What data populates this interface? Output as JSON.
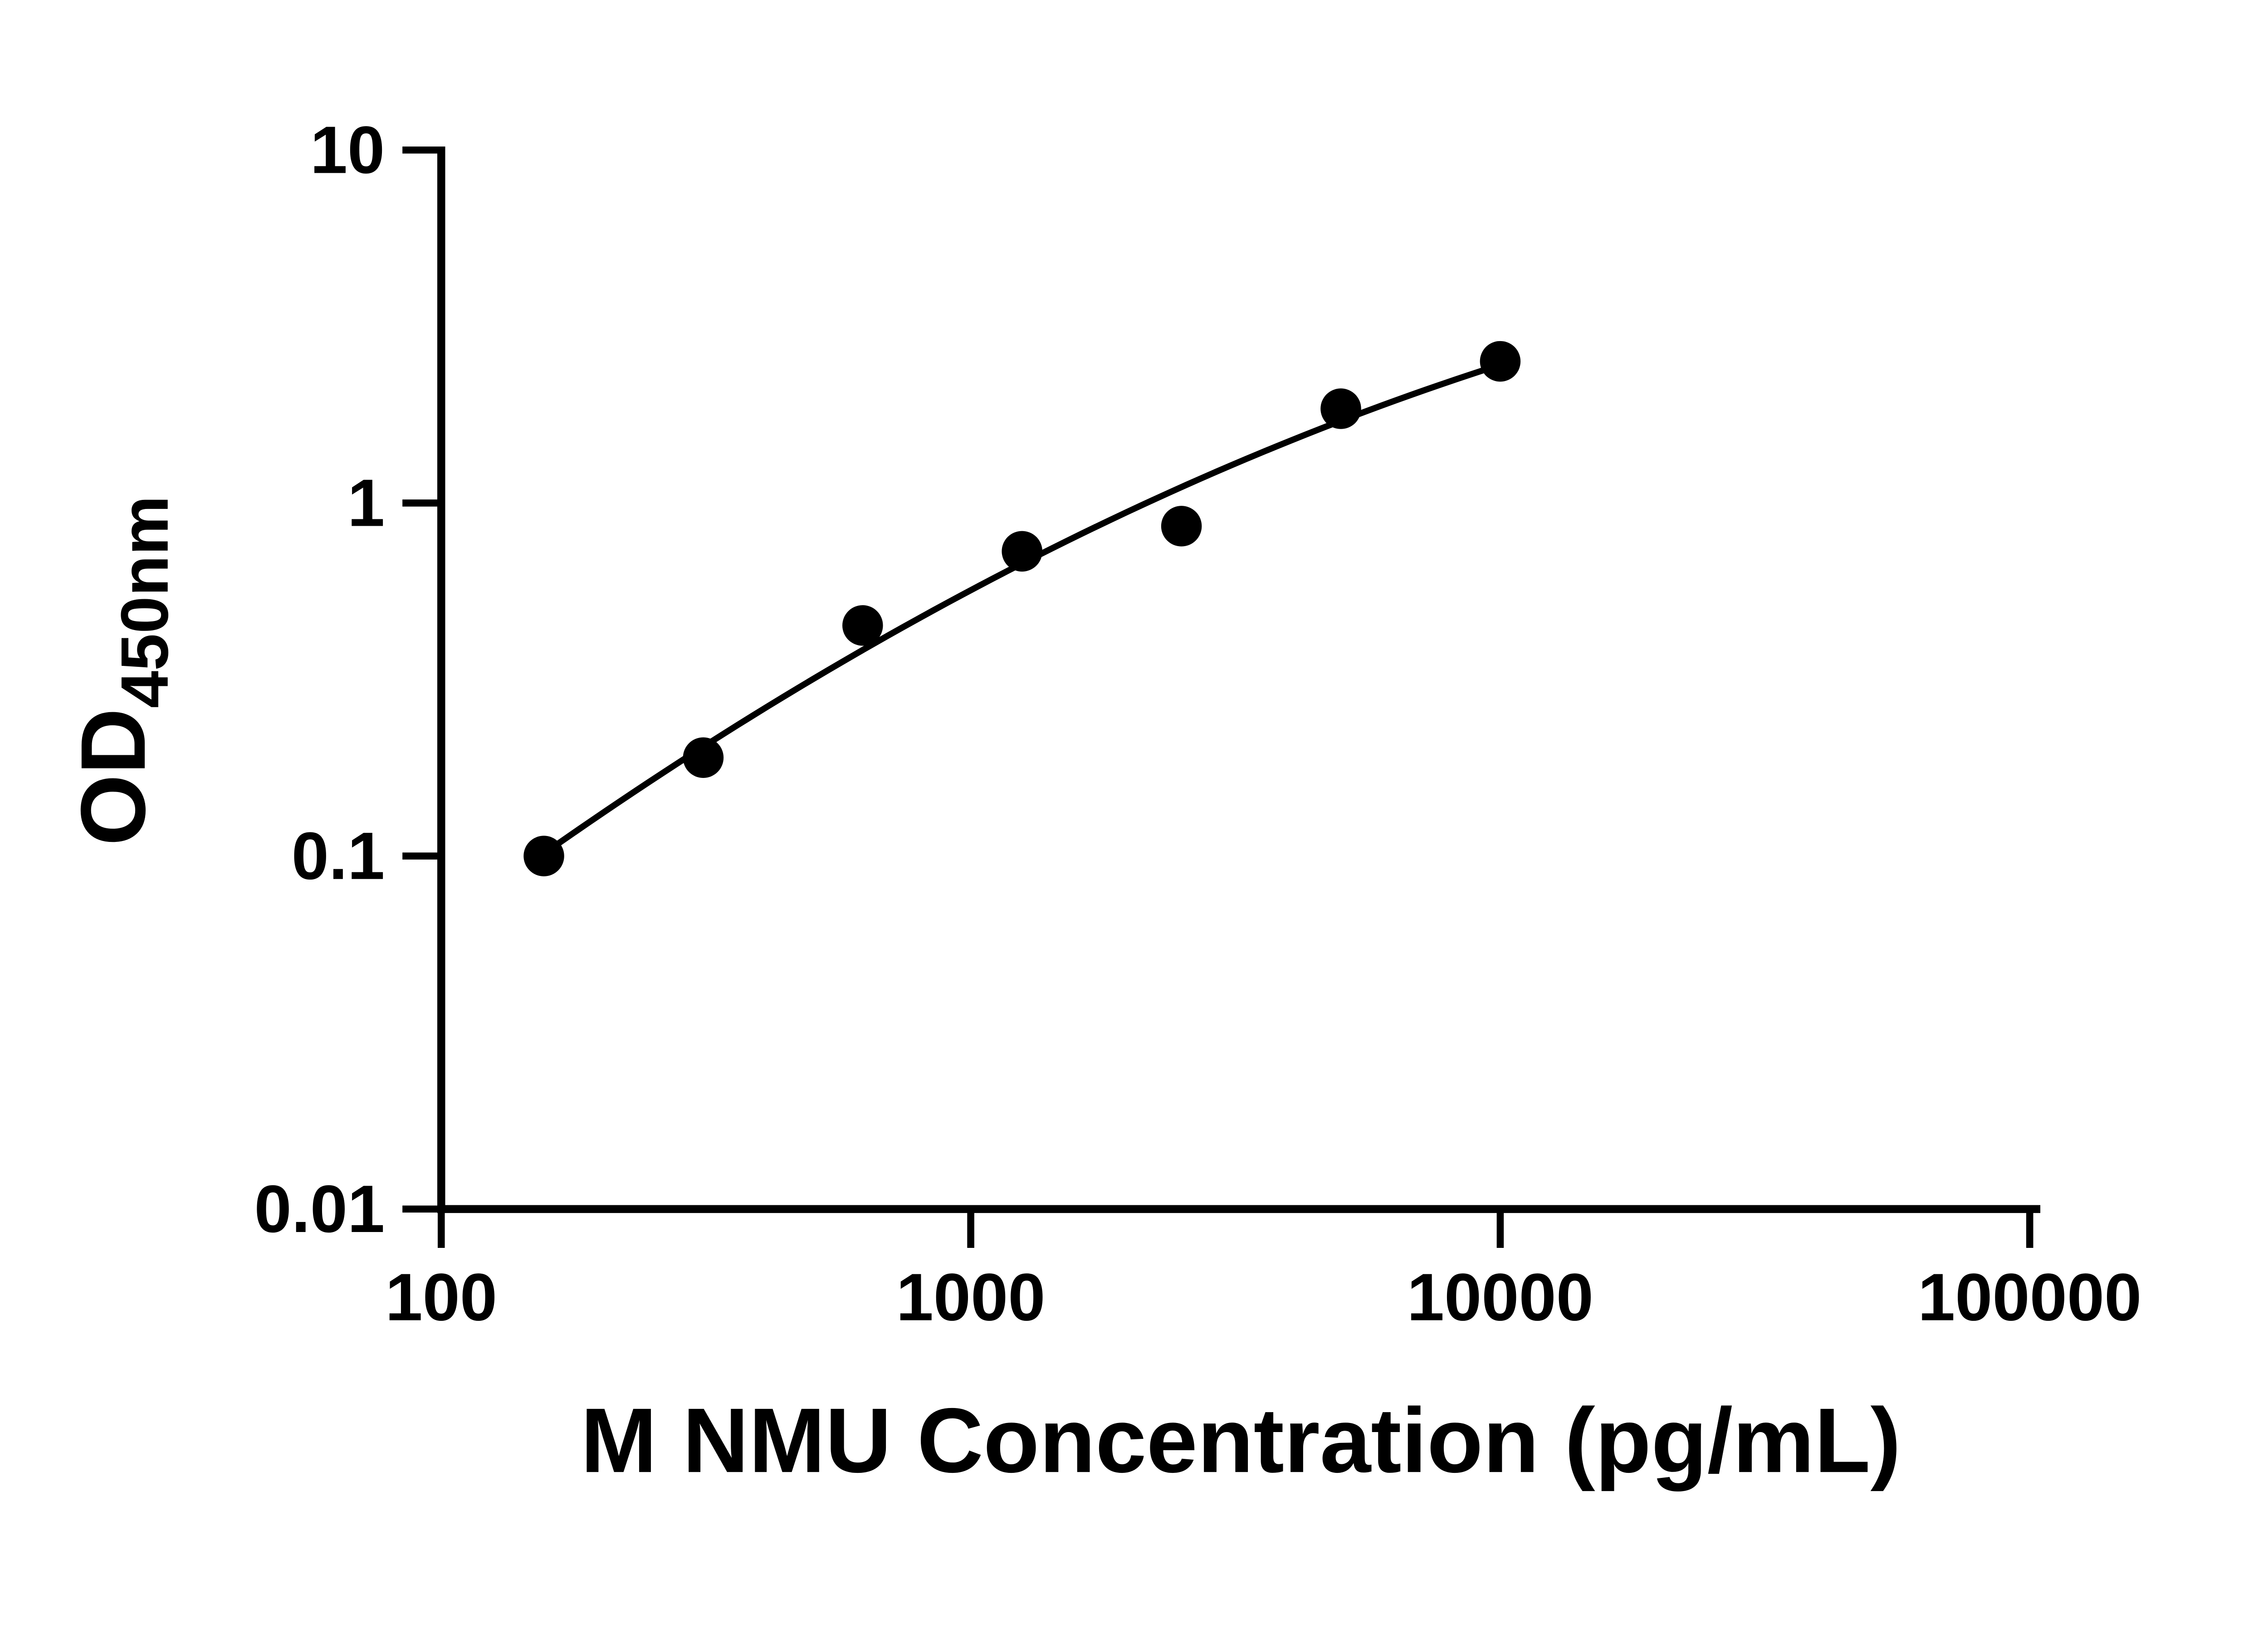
{
  "figure": {
    "background_color": "#ffffff",
    "axis_color": "#000000",
    "marker_color": "#000000",
    "curve_color": "#000000"
  },
  "chart_data": {
    "type": "scatter",
    "title": "",
    "xlabel": "M NMU Concentration (pg/mL)",
    "ylabel": {
      "main": "OD",
      "sub": "450nm"
    },
    "x_scale": "log10",
    "y_scale": "log10",
    "xlim": [
      100,
      100000
    ],
    "ylim": [
      0.01,
      10
    ],
    "grid": false,
    "legend": null,
    "x_ticks": [
      {
        "value": 100,
        "label": "100"
      },
      {
        "value": 1000,
        "label": "1000"
      },
      {
        "value": 10000,
        "label": "10000"
      },
      {
        "value": 100000,
        "label": "100000"
      }
    ],
    "y_ticks": [
      {
        "value": 0.01,
        "label": "0.01"
      },
      {
        "value": 0.1,
        "label": "0.1"
      },
      {
        "value": 1,
        "label": "1"
      },
      {
        "value": 10,
        "label": "10"
      }
    ],
    "series": [
      {
        "name": "standard-curve-points",
        "x": [
          156.25,
          312.5,
          625,
          1250,
          2500,
          5000,
          10000
        ],
        "y": [
          0.1,
          0.19,
          0.45,
          0.73,
          0.86,
          1.85,
          2.52
        ]
      }
    ],
    "trendline": {
      "kind": "quadratic-fit-loglog",
      "x_start": 156.25,
      "x_end": 10000
    }
  }
}
